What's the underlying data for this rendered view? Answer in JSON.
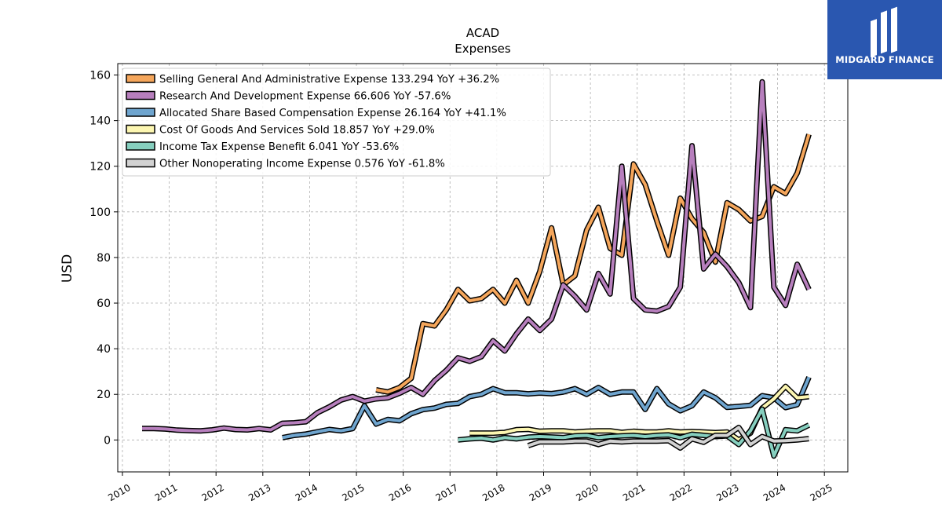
{
  "brand": {
    "name": "MIDGARD FINANCE",
    "bg_color": "#2a57b0"
  },
  "chart_data": {
    "type": "line",
    "title": "ACAD",
    "subtitle": "Expenses",
    "ylabel": "USD",
    "xlabel": "",
    "xlim": [
      2009.9,
      2025.5
    ],
    "ylim": [
      -14,
      165
    ],
    "xticks": [
      2010,
      2011,
      2012,
      2013,
      2014,
      2015,
      2016,
      2017,
      2018,
      2019,
      2020,
      2021,
      2022,
      2023,
      2024,
      2025
    ],
    "yticks": [
      0,
      20,
      40,
      60,
      80,
      100,
      120,
      140,
      160
    ],
    "grid": true,
    "legend_position": "top-left",
    "series": [
      {
        "name": "Selling General And Administrative Expense",
        "legend": "Selling General And Administrative Expense  133.294 YoY +36.2%",
        "color": "#f5a65b",
        "points": [
          [
            2015.42,
            22
          ],
          [
            2015.67,
            21
          ],
          [
            2015.92,
            23
          ],
          [
            2016.17,
            27
          ],
          [
            2016.42,
            51
          ],
          [
            2016.67,
            50
          ],
          [
            2016.92,
            57
          ],
          [
            2017.17,
            66
          ],
          [
            2017.42,
            61
          ],
          [
            2017.67,
            62
          ],
          [
            2017.92,
            66
          ],
          [
            2018.17,
            60
          ],
          [
            2018.42,
            70
          ],
          [
            2018.67,
            60
          ],
          [
            2018.92,
            74
          ],
          [
            2019.17,
            93
          ],
          [
            2019.42,
            68
          ],
          [
            2019.67,
            72
          ],
          [
            2019.92,
            92
          ],
          [
            2020.17,
            102
          ],
          [
            2020.42,
            84
          ],
          [
            2020.67,
            81
          ],
          [
            2020.92,
            121
          ],
          [
            2021.17,
            112
          ],
          [
            2021.42,
            96
          ],
          [
            2021.67,
            81
          ],
          [
            2021.92,
            106
          ],
          [
            2022.17,
            97
          ],
          [
            2022.42,
            91
          ],
          [
            2022.67,
            78
          ],
          [
            2022.92,
            104
          ],
          [
            2023.17,
            101
          ],
          [
            2023.42,
            96
          ],
          [
            2023.67,
            98
          ],
          [
            2023.92,
            111
          ],
          [
            2024.17,
            108
          ],
          [
            2024.42,
            117
          ],
          [
            2024.67,
            134
          ]
        ]
      },
      {
        "name": "Research And Development Expense",
        "legend": "Research And Development Expense  66.606 YoY -57.6%",
        "color": "#b77fbd",
        "points": [
          [
            2010.42,
            5
          ],
          [
            2010.67,
            5
          ],
          [
            2010.92,
            4.8
          ],
          [
            2011.17,
            4.3
          ],
          [
            2011.42,
            4.1
          ],
          [
            2011.67,
            4
          ],
          [
            2011.92,
            4.4
          ],
          [
            2012.17,
            5.2
          ],
          [
            2012.42,
            4.6
          ],
          [
            2012.67,
            4.4
          ],
          [
            2012.92,
            5
          ],
          [
            2013.17,
            4.4
          ],
          [
            2013.42,
            7.3
          ],
          [
            2013.67,
            7.5
          ],
          [
            2013.92,
            8
          ],
          [
            2014.17,
            12
          ],
          [
            2014.42,
            14.5
          ],
          [
            2014.67,
            17.5
          ],
          [
            2014.92,
            19
          ],
          [
            2015.17,
            17
          ],
          [
            2015.42,
            18
          ],
          [
            2015.67,
            18.5
          ],
          [
            2015.92,
            20.5
          ],
          [
            2016.17,
            23
          ],
          [
            2016.42,
            20
          ],
          [
            2016.67,
            26
          ],
          [
            2016.92,
            30.5
          ],
          [
            2017.17,
            36
          ],
          [
            2017.42,
            34.5
          ],
          [
            2017.67,
            36.5
          ],
          [
            2017.92,
            43.5
          ],
          [
            2018.17,
            39
          ],
          [
            2018.42,
            46.5
          ],
          [
            2018.67,
            53
          ],
          [
            2018.92,
            48
          ],
          [
            2019.17,
            53
          ],
          [
            2019.42,
            68
          ],
          [
            2019.67,
            63
          ],
          [
            2019.92,
            57
          ],
          [
            2020.17,
            73
          ],
          [
            2020.42,
            64
          ],
          [
            2020.67,
            120
          ],
          [
            2020.92,
            62
          ],
          [
            2021.17,
            57
          ],
          [
            2021.42,
            56.5
          ],
          [
            2021.67,
            58.5
          ],
          [
            2021.92,
            67
          ],
          [
            2022.17,
            129
          ],
          [
            2022.42,
            75
          ],
          [
            2022.67,
            81.5
          ],
          [
            2022.92,
            76
          ],
          [
            2023.17,
            69
          ],
          [
            2023.42,
            58
          ],
          [
            2023.67,
            157
          ],
          [
            2023.92,
            67
          ],
          [
            2024.17,
            59
          ],
          [
            2024.42,
            77
          ],
          [
            2024.67,
            66
          ]
        ]
      },
      {
        "name": "Allocated Share Based Compensation Expense",
        "legend": "Allocated Share Based Compensation Expense  26.164 YoY +41.1%",
        "color": "#6fa5cf",
        "points": [
          [
            2013.42,
            1
          ],
          [
            2013.67,
            2
          ],
          [
            2013.92,
            2.6
          ],
          [
            2014.17,
            3.6
          ],
          [
            2014.42,
            4.6
          ],
          [
            2014.67,
            4
          ],
          [
            2014.92,
            5
          ],
          [
            2015.17,
            15
          ],
          [
            2015.42,
            7
          ],
          [
            2015.67,
            9
          ],
          [
            2015.92,
            8.4
          ],
          [
            2016.17,
            11.5
          ],
          [
            2016.42,
            13.3
          ],
          [
            2016.67,
            14
          ],
          [
            2016.92,
            15.6
          ],
          [
            2017.17,
            16
          ],
          [
            2017.42,
            19
          ],
          [
            2017.67,
            20
          ],
          [
            2017.92,
            22.5
          ],
          [
            2018.17,
            20.7
          ],
          [
            2018.42,
            20.7
          ],
          [
            2018.67,
            20.2
          ],
          [
            2018.92,
            20.6
          ],
          [
            2019.17,
            20.3
          ],
          [
            2019.42,
            21
          ],
          [
            2019.67,
            22.5
          ],
          [
            2019.92,
            20
          ],
          [
            2020.17,
            23
          ],
          [
            2020.42,
            20
          ],
          [
            2020.67,
            21
          ],
          [
            2020.92,
            21
          ],
          [
            2021.17,
            13.4
          ],
          [
            2021.42,
            22.5
          ],
          [
            2021.67,
            15.8
          ],
          [
            2021.92,
            12.8
          ],
          [
            2022.17,
            15
          ],
          [
            2022.42,
            21
          ],
          [
            2022.67,
            18.5
          ],
          [
            2022.92,
            14.3
          ],
          [
            2023.17,
            14.7
          ],
          [
            2023.42,
            15.2
          ],
          [
            2023.67,
            19.4
          ],
          [
            2023.92,
            18.5
          ],
          [
            2024.17,
            14.2
          ],
          [
            2024.42,
            15.5
          ],
          [
            2024.67,
            27.5
          ]
        ]
      },
      {
        "name": "Cost Of Goods And Services Sold",
        "legend": "Cost Of Goods And Services Sold  18.857 YoY +29.0%",
        "color": "#fcf6b1",
        "points": [
          [
            2017.42,
            3
          ],
          [
            2017.67,
            3
          ],
          [
            2017.92,
            3
          ],
          [
            2018.17,
            3.3
          ],
          [
            2018.42,
            4.5
          ],
          [
            2018.67,
            4.7
          ],
          [
            2018.92,
            3.8
          ],
          [
            2019.17,
            4
          ],
          [
            2019.42,
            4
          ],
          [
            2019.67,
            3.5
          ],
          [
            2019.92,
            3.8
          ],
          [
            2020.17,
            4
          ],
          [
            2020.42,
            4
          ],
          [
            2020.67,
            3.3
          ],
          [
            2020.92,
            3.8
          ],
          [
            2021.17,
            3.5
          ],
          [
            2021.42,
            3.5
          ],
          [
            2021.67,
            4
          ],
          [
            2021.92,
            3.5
          ],
          [
            2022.17,
            3.7
          ],
          [
            2022.42,
            3.5
          ],
          [
            2022.67,
            3.2
          ],
          [
            2022.92,
            3.5
          ],
          [
            2023.17,
            0
          ],
          [
            2023.42,
            3
          ],
          [
            2023.67,
            14
          ],
          [
            2023.92,
            18
          ],
          [
            2024.17,
            23.5
          ],
          [
            2024.42,
            18.5
          ],
          [
            2024.67,
            19
          ]
        ]
      },
      {
        "name": "Income Tax Expense Benefit",
        "legend": "Income Tax Expense Benefit  6.041 YoY -53.6%",
        "color": "#86cfbf",
        "points": [
          [
            2017.17,
            0
          ],
          [
            2017.42,
            0.5
          ],
          [
            2017.67,
            0.8
          ],
          [
            2017.92,
            0
          ],
          [
            2018.17,
            1
          ],
          [
            2018.42,
            0.5
          ],
          [
            2018.67,
            1.2
          ],
          [
            2018.92,
            1.5
          ],
          [
            2019.17,
            1.3
          ],
          [
            2019.42,
            1
          ],
          [
            2019.67,
            1.8
          ],
          [
            2019.92,
            2
          ],
          [
            2020.17,
            1
          ],
          [
            2020.42,
            1.5
          ],
          [
            2020.67,
            1.8
          ],
          [
            2020.92,
            2
          ],
          [
            2021.17,
            1.5
          ],
          [
            2021.42,
            2
          ],
          [
            2021.67,
            2.2
          ],
          [
            2021.92,
            1
          ],
          [
            2022.17,
            2.5
          ],
          [
            2022.42,
            2
          ],
          [
            2022.67,
            1.5
          ],
          [
            2022.92,
            1.8
          ],
          [
            2023.17,
            -2
          ],
          [
            2023.42,
            4
          ],
          [
            2023.67,
            13.5
          ],
          [
            2023.92,
            -7
          ],
          [
            2024.17,
            4.5
          ],
          [
            2024.42,
            4
          ],
          [
            2024.67,
            6.5
          ]
        ]
      },
      {
        "name": "Other Nonoperating Income Expense",
        "legend": "Other Nonoperating Income Expense  0.576 YoY -61.8%",
        "color": "#d2d2d2",
        "points": [
          [
            2018.67,
            -2.5
          ],
          [
            2018.92,
            -0.8
          ],
          [
            2019.17,
            -0.8
          ],
          [
            2019.42,
            -0.8
          ],
          [
            2019.67,
            -0.5
          ],
          [
            2019.92,
            -0.5
          ],
          [
            2020.17,
            -2
          ],
          [
            2020.42,
            -0.5
          ],
          [
            2020.67,
            -0.8
          ],
          [
            2020.92,
            -0.5
          ],
          [
            2021.17,
            -0.5
          ],
          [
            2021.42,
            -0.5
          ],
          [
            2021.67,
            -0.3
          ],
          [
            2021.92,
            -3.5
          ],
          [
            2022.17,
            0.5
          ],
          [
            2022.42,
            -1
          ],
          [
            2022.67,
            2
          ],
          [
            2022.92,
            2
          ],
          [
            2023.17,
            5.5
          ],
          [
            2023.42,
            -2
          ],
          [
            2023.67,
            1.5
          ],
          [
            2023.92,
            -0.5
          ],
          [
            2024.17,
            -0.3
          ],
          [
            2024.42,
            0
          ],
          [
            2024.67,
            0.6
          ]
        ]
      }
    ]
  }
}
